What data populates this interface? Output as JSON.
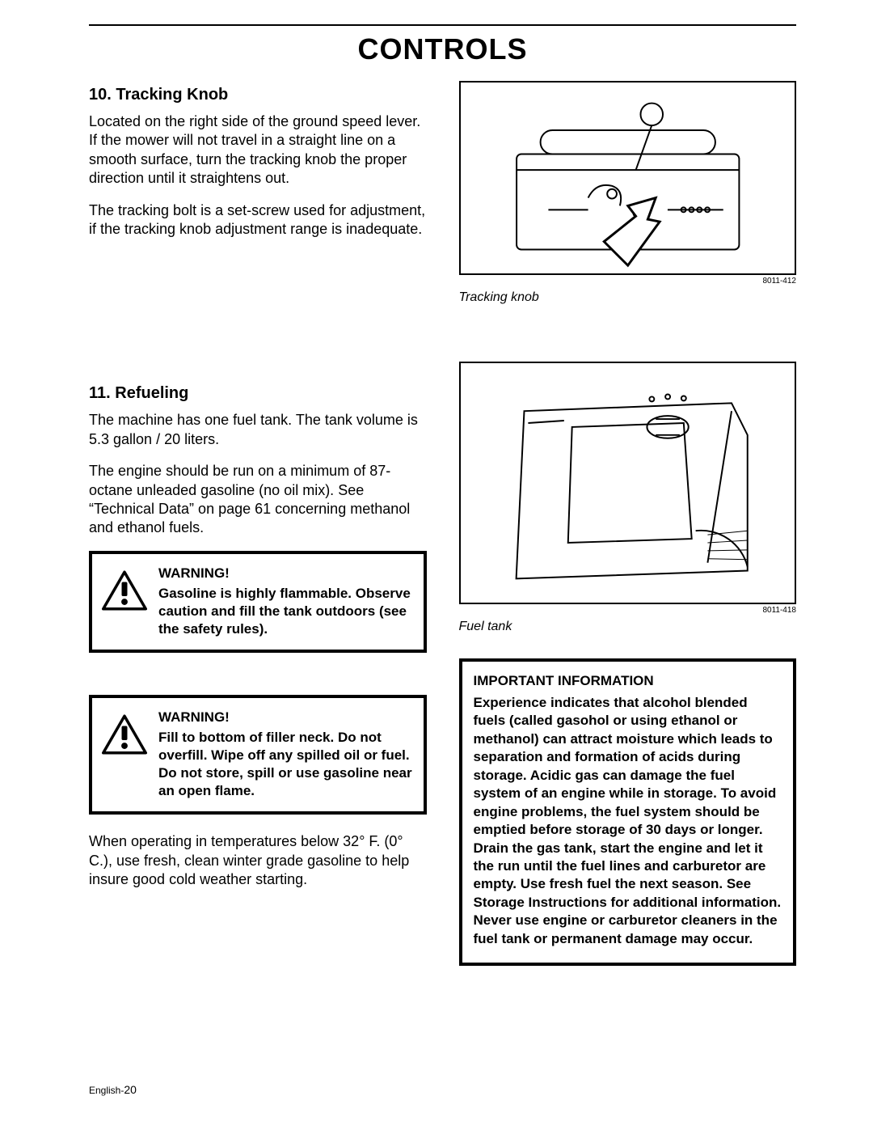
{
  "page": {
    "title": "CONTROLS",
    "footer_label": "English-",
    "footer_page": "20"
  },
  "section1": {
    "heading": "10. Tracking Knob",
    "p1": "Located on the right side of the ground speed lever. If the mower will not travel in a straight line on a smooth surface, turn the tracking knob the proper direction until it straightens out.",
    "p2": "The tracking bolt is a set-screw used for adjustment, if the tracking knob adjustment range is inadequate."
  },
  "fig1": {
    "code": "8011-412",
    "caption": "Tracking knob"
  },
  "section2": {
    "heading": "11. Refueling",
    "p1": "The machine has one fuel tank. The tank volume is 5.3 gallon / 20 liters.",
    "p2": "The engine should be run on a minimum of 87-octane unleaded gasoline (no oil mix). See “Technical Data” on page 61 concerning methanol and ethanol fuels.",
    "p3": "When operating in temperatures below 32° F. (0° C.), use fresh, clean winter grade gasoline to help insure good cold weather starting."
  },
  "fig2": {
    "code": "8011-418",
    "caption": "Fuel tank"
  },
  "warning1": {
    "heading": "WARNING!",
    "body": "Gasoline is highly flammable. Observe caution and fill the tank outdoors\n(see the safety rules)."
  },
  "warning2": {
    "heading": "WARNING!",
    "body": "Fill to bottom of filler neck. Do not overfill. Wipe off any spilled oil or fuel. Do not store, spill or use gasoline near an open flame."
  },
  "infobox": {
    "heading": "IMPORTANT INFORMATION",
    "body": "Experience indicates that alcohol blended fuels (called gasohol or using ethanol or methanol) can attract moisture which leads to separation and formation of acids during storage. Acidic gas can damage the fuel system of an engine while in storage. To avoid engine problems, the fuel system should be emptied before storage of 30 days or longer. Drain the gas tank, start the engine and let it the run until the fuel lines and carburetor are empty. Use fresh fuel the next season. See Storage Instructions for additional information. Never use engine or carburetor cleaners in the fuel tank or permanent damage may occur."
  },
  "svg": {
    "tracking_knob": "<svg class='fig-svg' viewBox='0 0 400 240'><g stroke='#000' stroke-width='2' fill='none'><rect x='60' y='90' width='280' height='120' rx='6'/><line x1='60' y1='110' x2='340' y2='110'/><rect x='90' y='60' width='220' height='30' rx='15'/><circle cx='230' cy='40' r='14' fill='#fff'/><line x1='230' y1='54' x2='210' y2='110'/><path d='M150 145 q10 -20 30 -15 q15 5 10 25'/><circle cx='180' cy='140' r='6'/><line x1='100' y1='160' x2='150' y2='160'/><line x1='250' y1='160' x2='320' y2='160'/><circle cx='210' cy='165' r='3'/><circle cx='220' cy='165' r='3'/><circle cx='270' cy='160' r='3'/><circle cx='280' cy='160' r='3'/><circle cx='290' cy='160' r='3'/><circle cx='300' cy='160' r='3'/></g><g stroke='#000' stroke-width='3' fill='#fff'><path d='M200 230 L240 175 L225 172 L235 145 L200 155 L210 168 L170 200 Z'/></g></svg>",
    "fuel_tank": "<svg class='fig-svg' viewBox='0 0 400 300'><g stroke='#000' stroke-width='2' fill='none'><path d='M70 60 L330 50 L350 90 L350 260 L60 270 Z'/><path d='M130 80 L270 75 L280 220 L125 225 Z' fill='#fff'/><ellipse cx='250' cy='80' rx='26' ry='14'/><line x1='235' y1='70' x2='265' y2='70'/><line x1='235' y1='90' x2='265' y2='90'/><path d='M285 210 A60 60 0 0 1 350 255'/><g stroke-width='1'><line x1='300' y1='215' x2='350' y2='210'/><line x1='300' y1='225' x2='350' y2='222'/><line x1='300' y1='235' x2='350' y2='234'/><line x1='300' y1='245' x2='350' y2='246'/></g><circle cx='230' cy='45' r='3'/><circle cx='250' cy='42' r='3'/><circle cx='270' cy='44' r='3'/><path d='M75 75 L120 72'/><path d='M330 60 L300 250'/></g></svg>",
    "warning_triangle": "<svg viewBox='0 0 64 56' width='56' height='50'><polygon points='32,2 62,54 2,54' fill='none' stroke='#000' stroke-width='4' stroke-linejoin='round'/><rect x='28' y='16' width='8' height='20' rx='2' fill='#000'/><circle cx='32' cy='44' r='4.5' fill='#000'/></svg>"
  }
}
